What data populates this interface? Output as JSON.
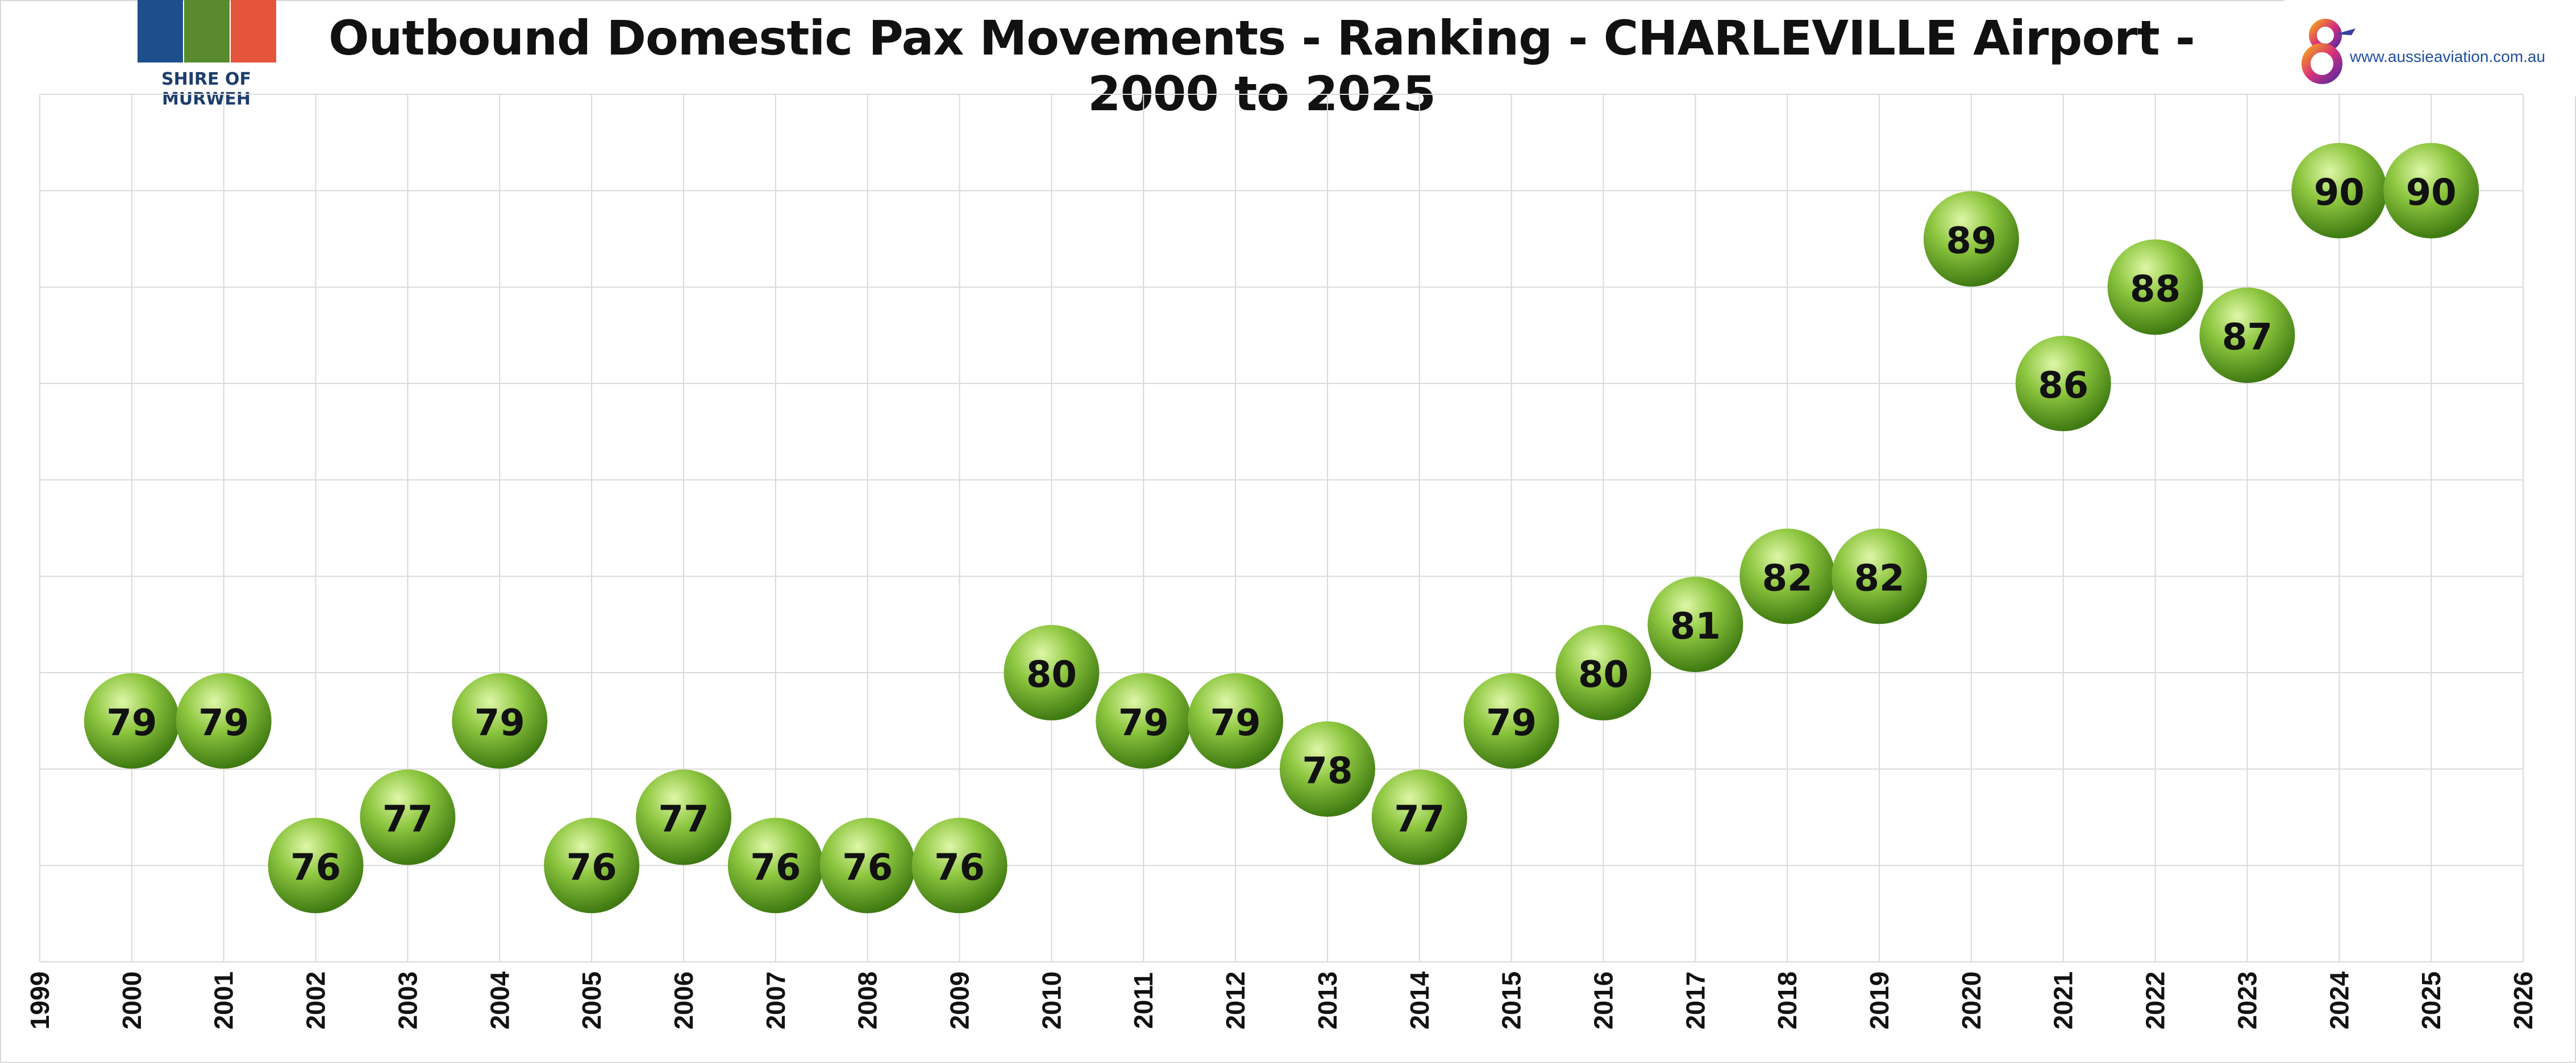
{
  "header": {
    "title": "Outbound Domestic Pax Movements - Ranking - CHARLEVILLE Airport - 2000 to 2025",
    "logo_left_caption": "SHIRE OF MURWEH",
    "logo_right_url": "www.aussieaviation.com.au"
  },
  "colors": {
    "ball_light": "#dff7a8",
    "ball_mid": "#8dc63f",
    "ball_dark": "#3f7a12",
    "grid": "#d9d9d9",
    "logo_blue": "#1d4f8c",
    "logo_green": "#5a8a2e",
    "logo_red": "#e5553a"
  },
  "chart_data": {
    "type": "scatter",
    "title": "Outbound Domestic Pax Movements - Ranking - CHARLEVILLE Airport - 2000 to 2025",
    "xlabel": "",
    "ylabel": "",
    "xlim": [
      1999,
      2026
    ],
    "ylim": [
      74,
      92
    ],
    "grid": true,
    "x_tick_labels": [
      "1999",
      "2000",
      "2001",
      "2002",
      "2003",
      "2004",
      "2005",
      "2006",
      "2007",
      "2008",
      "2009",
      "2010",
      "2011",
      "2012",
      "2013",
      "2014",
      "2015",
      "2016",
      "2017",
      "2018",
      "2019",
      "2020",
      "2021",
      "2022",
      "2023",
      "2024",
      "2025",
      "2026"
    ],
    "marker": "sphere",
    "series": [
      {
        "x": [
          2000,
          2001,
          2002,
          2003,
          2004,
          2005,
          2006,
          2007,
          2008,
          2009,
          2010,
          2011,
          2012,
          2013,
          2014,
          2015,
          2016,
          2017,
          2018,
          2019,
          2020,
          2021,
          2022,
          2023,
          2024,
          2025
        ],
        "values": [
          79,
          79,
          76,
          77,
          79,
          76,
          77,
          76,
          76,
          76,
          80,
          79,
          79,
          78,
          77,
          79,
          80,
          81,
          82,
          82,
          89,
          86,
          88,
          87,
          90,
          90
        ],
        "labels": [
          "79",
          "79",
          "76",
          "77",
          "79",
          "76",
          "77",
          "76",
          "76",
          "76",
          "80",
          "79",
          "79",
          "78",
          "77",
          "79",
          "80",
          "81",
          "82",
          "82",
          "89",
          "86",
          "88",
          "87",
          "90",
          "90"
        ]
      }
    ]
  }
}
